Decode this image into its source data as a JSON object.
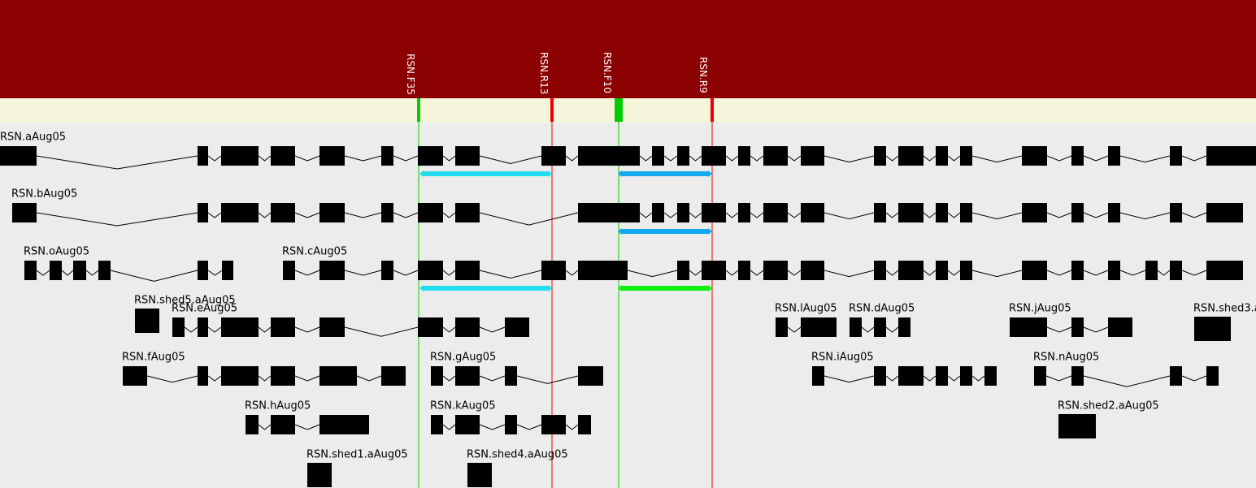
{
  "colors": {
    "header": "#8b0000",
    "primer_track": "#f5f5dc",
    "canvas": "#ececec",
    "forward_primer": "#00cc00",
    "reverse_primer": "#ee0000",
    "exon": "#000000",
    "amplicon_light_blue": "#22ddee",
    "amplicon_blue": "#11aaee",
    "amplicon_green": "#11ee11"
  },
  "primers": [
    {
      "label": "RSN.F35",
      "direction": "forward"
    },
    {
      "label": "RSN.R13",
      "direction": "reverse"
    },
    {
      "label": "RSN.F10",
      "direction": "forward"
    },
    {
      "label": "RSN.R9",
      "direction": "reverse"
    }
  ],
  "transcripts": [
    {
      "label": "RSN.aAug05"
    },
    {
      "label": "RSN.bAug05"
    },
    {
      "label": "RSN.oAug05"
    },
    {
      "label": "RSN.cAug05"
    },
    {
      "label": "RSN.shed5.aAug05"
    },
    {
      "label": "RSN.eAug05"
    },
    {
      "label": "RSN.lAug05"
    },
    {
      "label": "RSN.dAug05"
    },
    {
      "label": "RSN.jAug05"
    },
    {
      "label": "RSN.shed3.a"
    },
    {
      "label": "RSN.fAug05"
    },
    {
      "label": "RSN.gAug05"
    },
    {
      "label": "RSN.iAug05"
    },
    {
      "label": "RSN.nAug05"
    },
    {
      "label": "RSN.hAug05"
    },
    {
      "label": "RSN.kAug05"
    },
    {
      "label": "RSN.shed2.aAug05"
    },
    {
      "label": "RSN.shed1.aAug05"
    },
    {
      "label": "RSN.shed4.aAug05"
    }
  ]
}
